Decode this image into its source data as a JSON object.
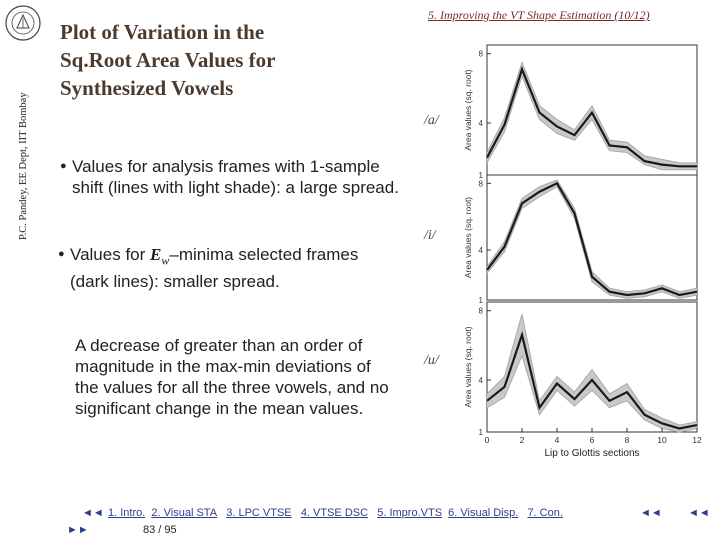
{
  "sidebar": {
    "credit": "P.C. Pandey, EE Dept, IIT Bombay"
  },
  "header": {
    "title_lines": [
      "Plot of Variation in the",
      "Sq.Root Area Values for",
      "Synthesized Vowels"
    ],
    "section_link": "5. Improving the VT Shape Estimation (10/12)"
  },
  "bullets": {
    "b1": "Values for analysis frames with 1-sample shift (lines with light shade): a large spread.",
    "b2_pre": "Values for ",
    "b2_e": "E",
    "b2_sub": "w",
    "b2_post": "–minima selected frames (dark lines): smaller spread.",
    "b3": "A decrease of greater than an order of magnitude in the max-min deviations of the values for all the three vowels, and no significant change in the mean values."
  },
  "vowels": [
    "/a/",
    "/i/",
    "/u/"
  ],
  "chart_data": [
    {
      "type": "line",
      "vowel": "/a/",
      "ylabel": "Area values (sq. root)",
      "y_ticks": [
        "1",
        "4",
        "8"
      ],
      "ylim": [
        1,
        8.5
      ],
      "xlim": [
        0,
        12
      ],
      "x": [
        0,
        1,
        2,
        3,
        4,
        5,
        6,
        7,
        8,
        9,
        10,
        11,
        12
      ],
      "series": [
        {
          "values": [
            2.0,
            3.9,
            7.1,
            4.6,
            3.8,
            3.3,
            4.6,
            2.7,
            2.6,
            1.8,
            1.6,
            1.5,
            1.5
          ]
        },
        {
          "values": [
            2.3,
            4.3,
            7.5,
            5.0,
            4.2,
            3.6,
            5.0,
            3.0,
            2.9,
            2.1,
            1.9,
            1.7,
            1.7
          ]
        },
        {
          "values": [
            1.7,
            3.5,
            6.7,
            4.2,
            3.4,
            3.0,
            4.2,
            2.4,
            2.3,
            1.6,
            1.3,
            1.3,
            1.3
          ]
        }
      ]
    },
    {
      "type": "line",
      "vowel": "/i/",
      "ylabel": "Area values (sq. root)",
      "y_ticks": [
        "1",
        "4",
        "8"
      ],
      "ylim": [
        1,
        8.5
      ],
      "xlim": [
        0,
        12
      ],
      "x": [
        0,
        1,
        2,
        3,
        4,
        5,
        6,
        7,
        8,
        9,
        10,
        11,
        12
      ],
      "series": [
        {
          "values": [
            2.8,
            4.2,
            6.8,
            7.5,
            8.0,
            6.2,
            2.4,
            1.5,
            1.3,
            1.4,
            1.7,
            1.3,
            1.5
          ]
        },
        {
          "values": [
            3.0,
            4.5,
            7.1,
            7.8,
            8.2,
            6.5,
            2.7,
            1.7,
            1.5,
            1.6,
            1.9,
            1.5,
            1.7
          ]
        },
        {
          "values": [
            2.6,
            3.9,
            6.5,
            7.2,
            7.8,
            5.9,
            2.1,
            1.3,
            1.1,
            1.2,
            1.5,
            1.1,
            1.3
          ]
        }
      ]
    },
    {
      "type": "line",
      "vowel": "/u/",
      "ylabel": "Area values (sq. root)",
      "xlabel": "Lip to Glottis sections",
      "y_ticks": [
        "1",
        "4",
        "8"
      ],
      "x_ticks": [
        "0",
        "2",
        "4",
        "6",
        "8",
        "10",
        "12"
      ],
      "ylim": [
        1,
        8.5
      ],
      "xlim": [
        0,
        12
      ],
      "x": [
        0,
        1,
        2,
        3,
        4,
        5,
        6,
        7,
        8,
        9,
        10,
        11,
        12
      ],
      "series": [
        {
          "values": [
            2.8,
            3.6,
            6.6,
            2.4,
            3.8,
            2.9,
            4.0,
            2.8,
            3.3,
            2.0,
            1.5,
            1.2,
            1.4
          ]
        },
        {
          "values": [
            3.2,
            4.2,
            7.8,
            2.8,
            4.2,
            3.3,
            4.6,
            3.2,
            3.8,
            2.3,
            1.8,
            1.4,
            1.6
          ]
        },
        {
          "values": [
            2.4,
            3.0,
            5.4,
            2.0,
            3.4,
            2.5,
            3.4,
            2.4,
            2.8,
            1.7,
            1.2,
            1.0,
            1.2
          ]
        }
      ]
    }
  ],
  "footer": {
    "nav_back": "◄◄",
    "nav_items": [
      "1. Intro.",
      "2. Visual STA",
      "3. LPC VTSE",
      "4. VTSE DSC",
      "5. Impro.VTS",
      "6. Visual Disp.",
      "7. Con."
    ],
    "nav_fwd": "►►",
    "nav_first": "◄◄",
    "page": "83 / 95"
  }
}
